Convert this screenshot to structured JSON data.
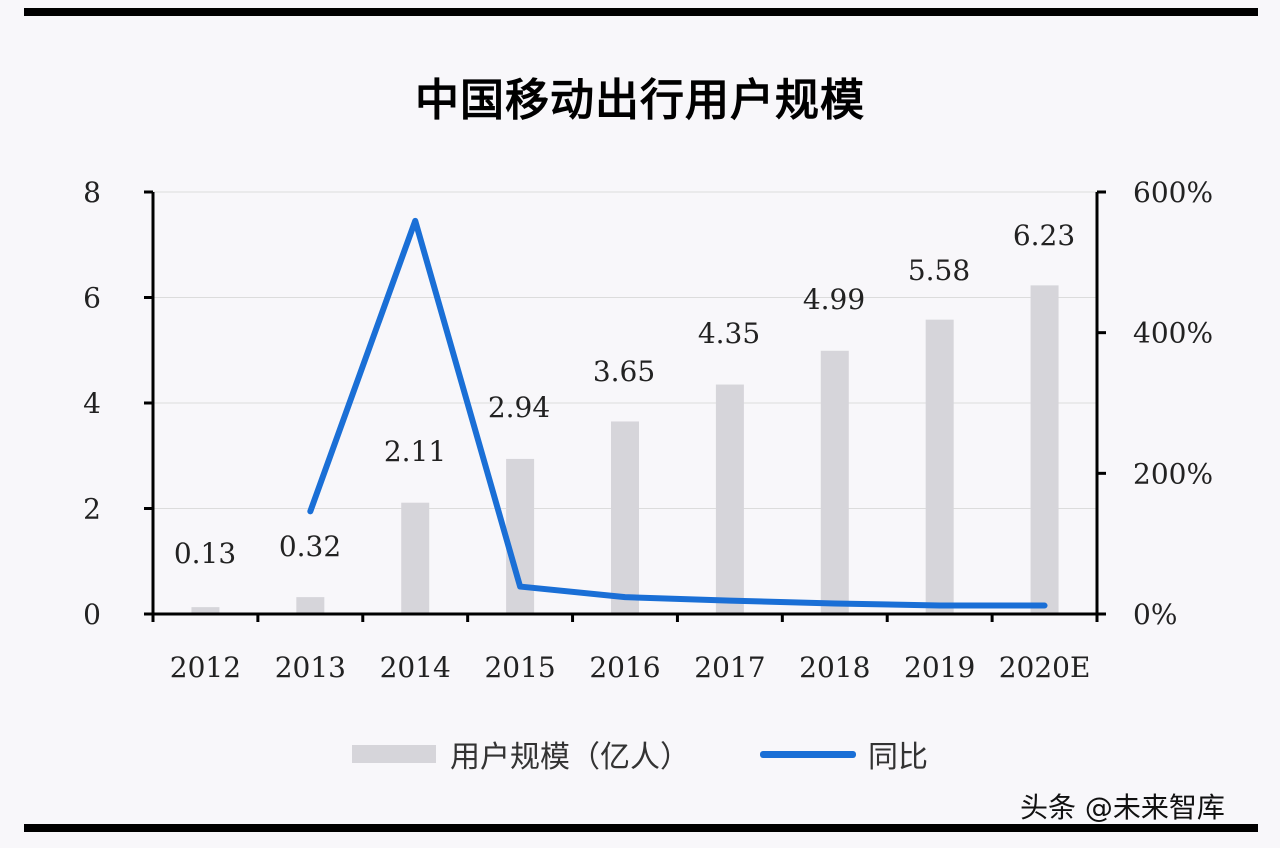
{
  "title": "中国移动出行用户规模",
  "watermark": "头条 @未来智库",
  "legend": {
    "bar_label": "用户规模（亿人）",
    "line_label": "同比"
  },
  "colors": {
    "bar": "#d6d5da",
    "line": "#1a6fd6",
    "grid": "#dcdcdc",
    "axis": "#000000"
  },
  "chart_data": {
    "type": "bar+line",
    "title": "中国移动出行用户规模",
    "categories": [
      "2012",
      "2013",
      "2014",
      "2015",
      "2016",
      "2017",
      "2018",
      "2019",
      "2020E"
    ],
    "series": [
      {
        "name": "用户规模（亿人）",
        "type": "bar",
        "axis": "left",
        "values": [
          0.13,
          0.32,
          2.11,
          2.94,
          3.65,
          4.35,
          4.99,
          5.58,
          6.23
        ],
        "labels": [
          "0.13",
          "0.32",
          "2.11",
          "2.94",
          "3.65",
          "4.35",
          "4.99",
          "5.58",
          "6.23"
        ]
      },
      {
        "name": "同比",
        "type": "line",
        "axis": "right",
        "values": [
          null,
          146,
          559,
          39,
          24,
          19,
          15,
          12,
          12
        ],
        "unit": "%"
      }
    ],
    "left_axis": {
      "ylim": [
        0,
        8
      ],
      "ticks": [
        "0",
        "2",
        "4",
        "6",
        "8"
      ]
    },
    "right_axis": {
      "ylim": [
        0,
        600
      ],
      "ticks": [
        "0%",
        "200%",
        "400%",
        "600%"
      ]
    },
    "grid": true,
    "legend_position": "bottom"
  }
}
